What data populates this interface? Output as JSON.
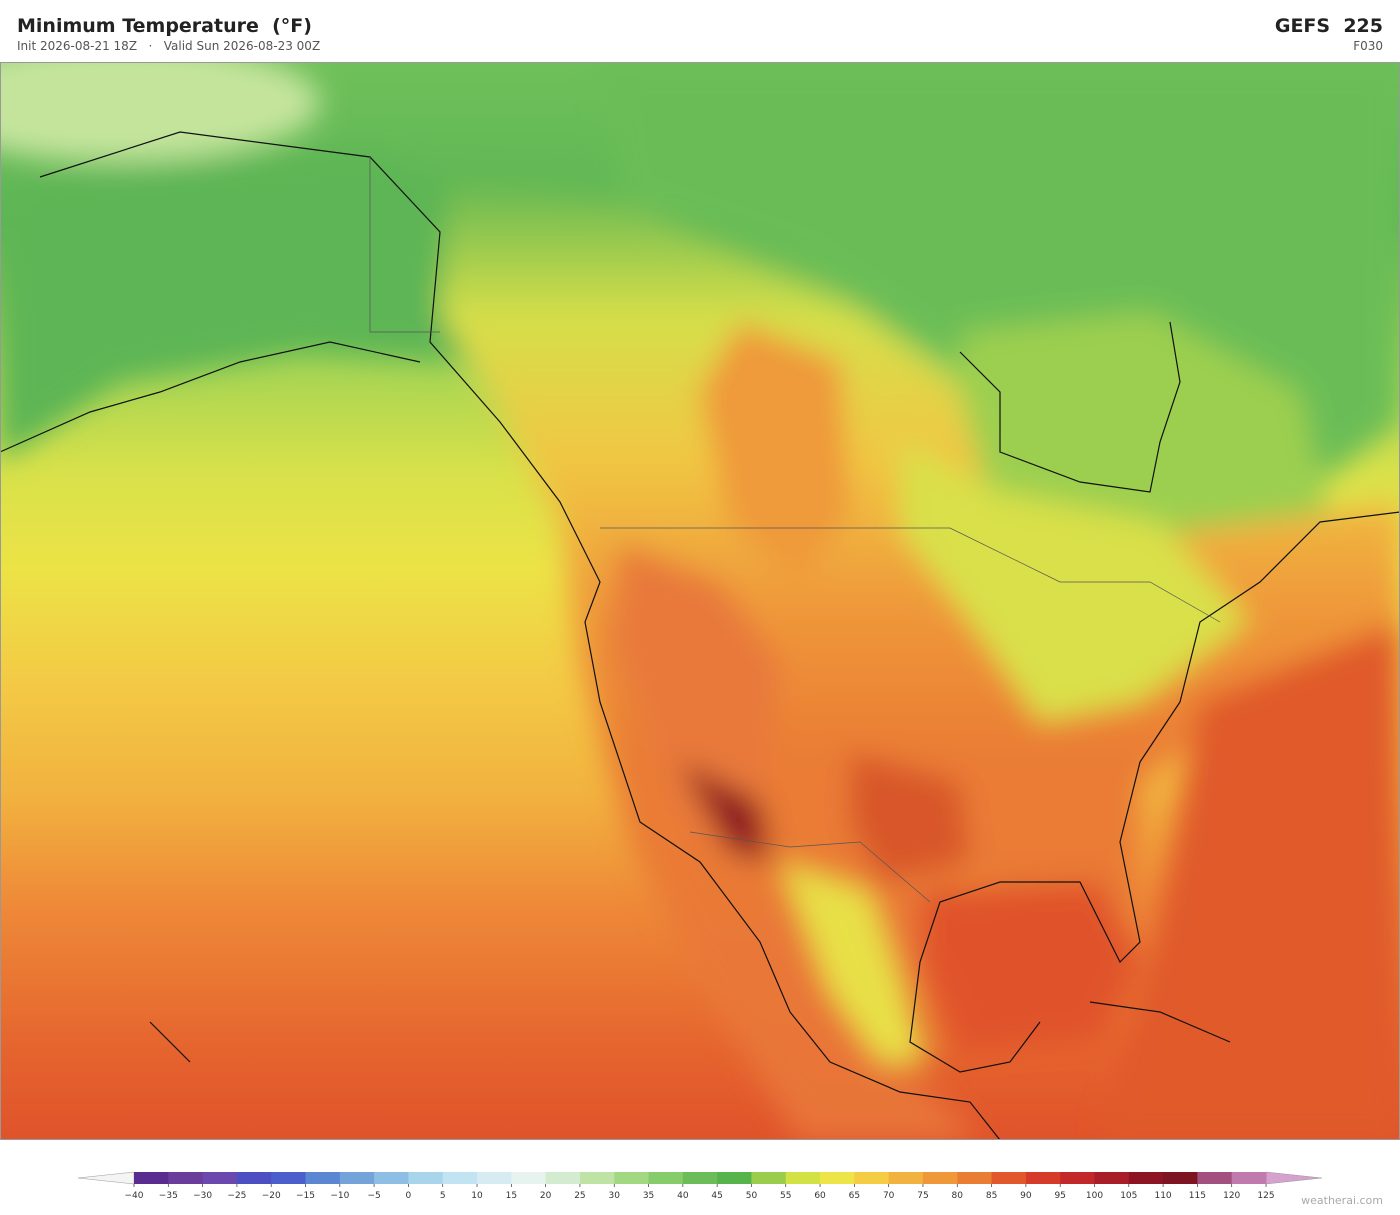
{
  "header": {
    "title": "Minimum Temperature  (°F)",
    "subtitle": "Init 2026-08-21 18Z   ·   Valid Sun 2026-08-23 00Z",
    "model": "GEFS  225",
    "step": "F030"
  },
  "colorbar": {
    "labels": [
      "−40",
      "−35",
      "−30",
      "−25",
      "−20",
      "−15",
      "−10",
      "−5",
      "0",
      "5",
      "10",
      "15",
      "20",
      "25",
      "30",
      "35",
      "40",
      "45",
      "50",
      "55",
      "60",
      "65",
      "70",
      "75",
      "80",
      "85",
      "90",
      "95",
      "100",
      "105",
      "110",
      "115",
      "120",
      "125"
    ],
    "colors": [
      "#5b2c8f",
      "#6a3d9a",
      "#6b48ad",
      "#4b4fc2",
      "#4a5fcc",
      "#5b86d2",
      "#74a3da",
      "#8fbee4",
      "#a8d4ec",
      "#c2e3f1",
      "#d7ecf2",
      "#e6f3ee",
      "#d3ecd0",
      "#bfe3a4",
      "#a3d883",
      "#86cc6a",
      "#6cbd5a",
      "#57b44d",
      "#9bcd4c",
      "#d2e245",
      "#ede447",
      "#f4cd45",
      "#f2b23f",
      "#ef983a",
      "#ea7d34",
      "#e1582d",
      "#d63a28",
      "#c2272a",
      "#a81d28",
      "#8d1523",
      "#7c1422",
      "#a2507f",
      "#c17aad"
    ],
    "under_color": "#f4f4f4",
    "over_color": "#d6a0cf"
  },
  "footer": {
    "watermark": "weatherai.com"
  }
}
